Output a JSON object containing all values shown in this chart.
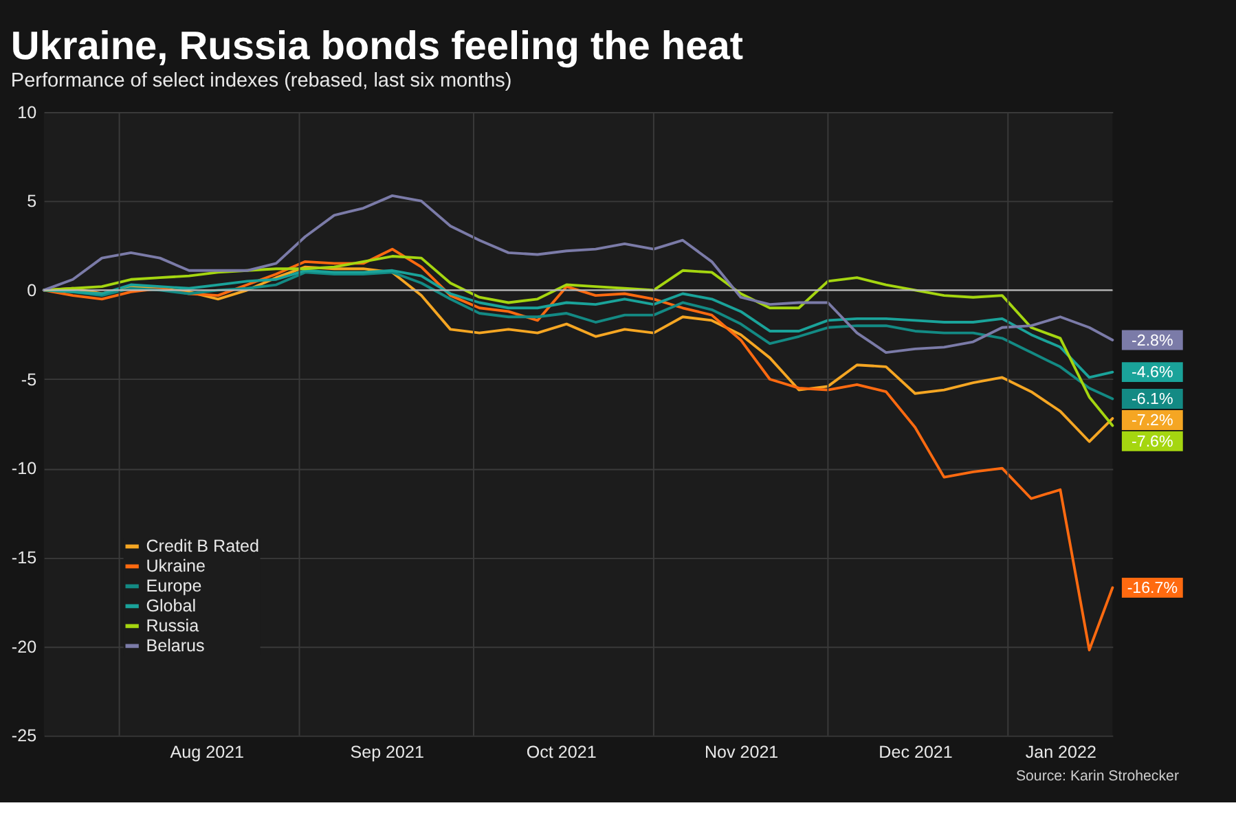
{
  "chart_data": {
    "type": "line",
    "title": "Ukraine, Russia bonds feeling the heat",
    "subtitle": "Performance of select indexes (rebased, last six months)",
    "x": [
      "2021-07-19",
      "2021-07-24",
      "2021-07-29",
      "2021-08-03",
      "2021-08-08",
      "2021-08-13",
      "2021-08-18",
      "2021-08-23",
      "2021-08-28",
      "2021-09-02",
      "2021-09-07",
      "2021-09-12",
      "2021-09-17",
      "2021-09-22",
      "2021-09-27",
      "2021-10-02",
      "2021-10-07",
      "2021-10-12",
      "2021-10-17",
      "2021-10-22",
      "2021-10-27",
      "2021-11-01",
      "2021-11-06",
      "2021-11-11",
      "2021-11-16",
      "2021-11-21",
      "2021-11-26",
      "2021-12-01",
      "2021-12-06",
      "2021-12-11",
      "2021-12-16",
      "2021-12-21",
      "2021-12-26",
      "2021-12-31",
      "2022-01-05",
      "2022-01-10",
      "2022-01-15",
      "2022-01-19"
    ],
    "series": [
      {
        "name": "Credit B Rated",
        "color": "#f5a623",
        "values": [
          0,
          0.1,
          -0.2,
          0.2,
          0.1,
          -0.1,
          -0.5,
          0,
          0.7,
          1.3,
          1.2,
          1.2,
          1.0,
          -0.3,
          -2.2,
          -2.4,
          -2.2,
          -2.4,
          -1.9,
          -2.6,
          -2.2,
          -2.4,
          -1.5,
          -1.7,
          -2.5,
          -3.8,
          -5.6,
          -5.4,
          -4.2,
          -4.3,
          -5.8,
          -5.6,
          -5.2,
          -4.9,
          -5.7,
          -6.8,
          -8.5,
          -7.2
        ],
        "value_labels": [
          null,
          null,
          null,
          null,
          null,
          null,
          null,
          null,
          null,
          null,
          null,
          null,
          null,
          null,
          null,
          null,
          null,
          null,
          null,
          null,
          null,
          null,
          null,
          null,
          null,
          null,
          null,
          null,
          null,
          null,
          null,
          null,
          null,
          null,
          null,
          null,
          null,
          "-7.2%"
        ]
      },
      {
        "name": "Ukraine",
        "color": "#ff6a10",
        "values": [
          0,
          -0.3,
          -0.5,
          -0.1,
          0.1,
          -0.2,
          -0.3,
          0.3,
          0.9,
          1.6,
          1.5,
          1.5,
          2.3,
          1.3,
          -0.3,
          -1.0,
          -1.2,
          -1.7,
          0.2,
          -0.3,
          -0.2,
          -0.5,
          -1.0,
          -1.4,
          -2.8,
          -5.0,
          -5.5,
          -5.6,
          -5.3,
          -5.7,
          -7.7,
          -10.5,
          -10.2,
          -10.0,
          -11.7,
          -11.2,
          -20.2,
          -16.7
        ],
        "value_labels": [
          null,
          null,
          null,
          null,
          null,
          null,
          null,
          null,
          null,
          null,
          null,
          null,
          null,
          null,
          null,
          null,
          null,
          null,
          null,
          null,
          null,
          null,
          null,
          null,
          null,
          null,
          null,
          null,
          null,
          null,
          null,
          null,
          null,
          null,
          null,
          null,
          null,
          "-16.7%"
        ]
      },
      {
        "name": "Europe",
        "color": "#138a84",
        "values": [
          0,
          -0.1,
          -0.3,
          0.1,
          0,
          -0.2,
          0,
          0.1,
          0.3,
          1.0,
          0.9,
          0.9,
          1.0,
          0.4,
          -0.5,
          -1.3,
          -1.5,
          -1.5,
          -1.3,
          -1.8,
          -1.4,
          -1.4,
          -0.7,
          -1.1,
          -1.9,
          -3.0,
          -2.6,
          -2.1,
          -2.0,
          -2.0,
          -2.3,
          -2.4,
          -2.4,
          -2.7,
          -3.5,
          -4.3,
          -5.5,
          -6.1
        ],
        "value_labels": [
          null,
          null,
          null,
          null,
          null,
          null,
          null,
          null,
          null,
          null,
          null,
          null,
          null,
          null,
          null,
          null,
          null,
          null,
          null,
          null,
          null,
          null,
          null,
          null,
          null,
          null,
          null,
          null,
          null,
          null,
          null,
          null,
          null,
          null,
          null,
          null,
          null,
          "-6.1%"
        ]
      },
      {
        "name": "Global",
        "color": "#1aa39a",
        "values": [
          0,
          -0.1,
          -0.2,
          0.3,
          0.2,
          0.1,
          0.3,
          0.5,
          0.6,
          1.1,
          1.0,
          1.0,
          1.1,
          0.8,
          -0.2,
          -0.7,
          -1.0,
          -1.0,
          -0.7,
          -0.8,
          -0.5,
          -0.8,
          -0.2,
          -0.5,
          -1.2,
          -2.3,
          -2.3,
          -1.7,
          -1.6,
          -1.6,
          -1.7,
          -1.8,
          -1.8,
          -1.6,
          -2.5,
          -3.2,
          -4.9,
          -4.6
        ],
        "value_labels": [
          null,
          null,
          null,
          null,
          null,
          null,
          null,
          null,
          null,
          null,
          null,
          null,
          null,
          null,
          null,
          null,
          null,
          null,
          null,
          null,
          null,
          null,
          null,
          null,
          null,
          null,
          null,
          null,
          null,
          null,
          null,
          null,
          null,
          null,
          null,
          null,
          null,
          "-4.6%"
        ]
      },
      {
        "name": "Russia",
        "color": "#a5d610",
        "values": [
          0,
          0.1,
          0.2,
          0.6,
          0.7,
          0.8,
          1.0,
          1.1,
          1.2,
          1.2,
          1.3,
          1.6,
          1.9,
          1.8,
          0.4,
          -0.4,
          -0.7,
          -0.5,
          0.3,
          0.2,
          0.1,
          0,
          1.1,
          1.0,
          -0.2,
          -1.0,
          -1.0,
          0.5,
          0.7,
          0.3,
          0,
          -0.3,
          -0.4,
          -0.3,
          -2.1,
          -2.7,
          -6.0,
          -7.6
        ],
        "value_labels": [
          null,
          null,
          null,
          null,
          null,
          null,
          null,
          null,
          null,
          null,
          null,
          null,
          null,
          null,
          null,
          null,
          null,
          null,
          null,
          null,
          null,
          null,
          null,
          null,
          null,
          null,
          null,
          null,
          null,
          null,
          null,
          null,
          null,
          null,
          null,
          null,
          null,
          "-7.6%"
        ]
      },
      {
        "name": "Belarus",
        "color": "#7b7ba8",
        "values": [
          0,
          0.6,
          1.8,
          2.1,
          1.8,
          1.1,
          1.1,
          1.1,
          1.5,
          3.0,
          4.2,
          4.6,
          5.3,
          5.0,
          3.6,
          2.8,
          2.1,
          2.0,
          2.2,
          2.3,
          2.6,
          2.3,
          2.8,
          1.6,
          -0.4,
          -0.8,
          -0.7,
          -0.7,
          -2.4,
          -3.5,
          -3.3,
          -3.2,
          -2.9,
          -2.1,
          -2.0,
          -1.5,
          -2.1,
          -2.8
        ],
        "value_labels": [
          null,
          null,
          null,
          null,
          null,
          null,
          null,
          null,
          null,
          null,
          null,
          null,
          null,
          null,
          null,
          null,
          null,
          null,
          null,
          null,
          null,
          null,
          null,
          null,
          null,
          null,
          null,
          null,
          null,
          null,
          null,
          null,
          null,
          null,
          null,
          null,
          null,
          "-2.8%"
        ]
      }
    ],
    "xlim": [
      "2021-07-19",
      "2022-01-19"
    ],
    "xticks": [
      {
        "value": "2021-08-01",
        "label": null
      },
      {
        "value": "2021-08-16",
        "label": "Aug 2021"
      },
      {
        "value": "2021-09-01",
        "label": null
      },
      {
        "value": "2021-09-16",
        "label": "Sep 2021"
      },
      {
        "value": "2021-10-01",
        "label": null
      },
      {
        "value": "2021-10-16",
        "label": "Oct 2021"
      },
      {
        "value": "2021-11-01",
        "label": null
      },
      {
        "value": "2021-11-16",
        "label": "Nov 2021"
      },
      {
        "value": "2021-12-01",
        "label": null
      },
      {
        "value": "2021-12-16",
        "label": "Dec 2021"
      },
      {
        "value": "2022-01-01",
        "label": null
      },
      {
        "value": "2022-01-10",
        "label": "Jan 2022"
      }
    ],
    "ylim": [
      -25,
      10
    ],
    "yticks": [
      -25,
      -20,
      -15,
      -10,
      -5,
      0,
      5,
      10
    ],
    "ref_lines": [
      {
        "axis": "y",
        "value": 0,
        "color": "#bbbbbb"
      }
    ],
    "grid": true,
    "legend": "bottom left",
    "line_style": "solid",
    "marker": "none",
    "annotations": [
      "Source: Karin Strohecker"
    ]
  }
}
